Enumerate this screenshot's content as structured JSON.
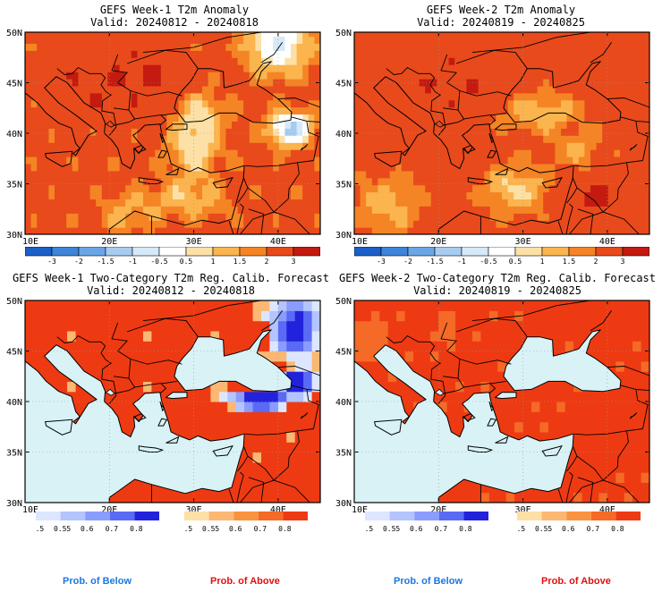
{
  "panels": [
    {
      "id": "p1",
      "kind": "anomaly",
      "title": "GEFS Week-1 T2m Anomaly",
      "valid": "Valid: 20240812 - 20240818",
      "lat_labels": [
        "50N",
        "45N",
        "40N",
        "35N",
        "30N"
      ],
      "lon_labels": [
        "10E",
        "20E",
        "30E",
        "40E"
      ]
    },
    {
      "id": "p2",
      "kind": "anomaly",
      "title": "GEFS Week-2 T2m Anomaly",
      "valid": "Valid: 20240819 - 20240825",
      "lat_labels": [
        "50N",
        "45N",
        "40N",
        "35N",
        "30N"
      ],
      "lon_labels": [
        "10E",
        "20E",
        "30E",
        "40E"
      ]
    },
    {
      "id": "p3",
      "kind": "prob",
      "title": "GEFS Week-1 Two-Category T2m Reg. Calib. Forecast",
      "valid": "Valid: 20240812 - 20240818",
      "lat_labels": [
        "50N",
        "45N",
        "40N",
        "35N",
        "30N"
      ],
      "lon_labels": [
        "10E",
        "20E",
        "30E",
        "40E"
      ]
    },
    {
      "id": "p4",
      "kind": "prob",
      "title": "GEFS Week-2 Two-Category T2m Reg. Calib. Forecast",
      "valid": "Valid: 20240819 - 20240825",
      "lat_labels": [
        "50N",
        "45N",
        "40N",
        "35N",
        "30N"
      ],
      "lon_labels": [
        "10E",
        "20E",
        "30E",
        "40E"
      ]
    }
  ],
  "anomaly_colorbar": {
    "labels": [
      "-3",
      "-2",
      "-1.5",
      "-1",
      "-0.5",
      "0.5",
      "1",
      "1.5",
      "2",
      "3"
    ],
    "colors": [
      "#1b5fc7",
      "#3e84d9",
      "#6aa6e6",
      "#a7ccf0",
      "#d6e9f8",
      "#ffffff",
      "#fde0a6",
      "#fbb44e",
      "#f58425",
      "#e84a1c",
      "#c41a10"
    ]
  },
  "prob_colorbars": {
    "labels": [
      "0.5",
      "0.55",
      "0.6",
      "0.7",
      "0.8"
    ],
    "below_colors": [
      "#dde6ff",
      "#b4c4ff",
      "#8b9cff",
      "#5a6af5",
      "#2222dd"
    ],
    "above_colors": [
      "#fde0a6",
      "#fbb873",
      "#f9933f",
      "#f46a26",
      "#ee3a12"
    ]
  },
  "legend": {
    "below": "Prob. of Below",
    "above": "Prob. of Above",
    "below_color": "#1a78e0",
    "above_color": "#e0120e"
  },
  "map_colors": {
    "sea_prob": "#d8f2f6",
    "land_prob": "#ee3a12",
    "coast": "#000000"
  }
}
